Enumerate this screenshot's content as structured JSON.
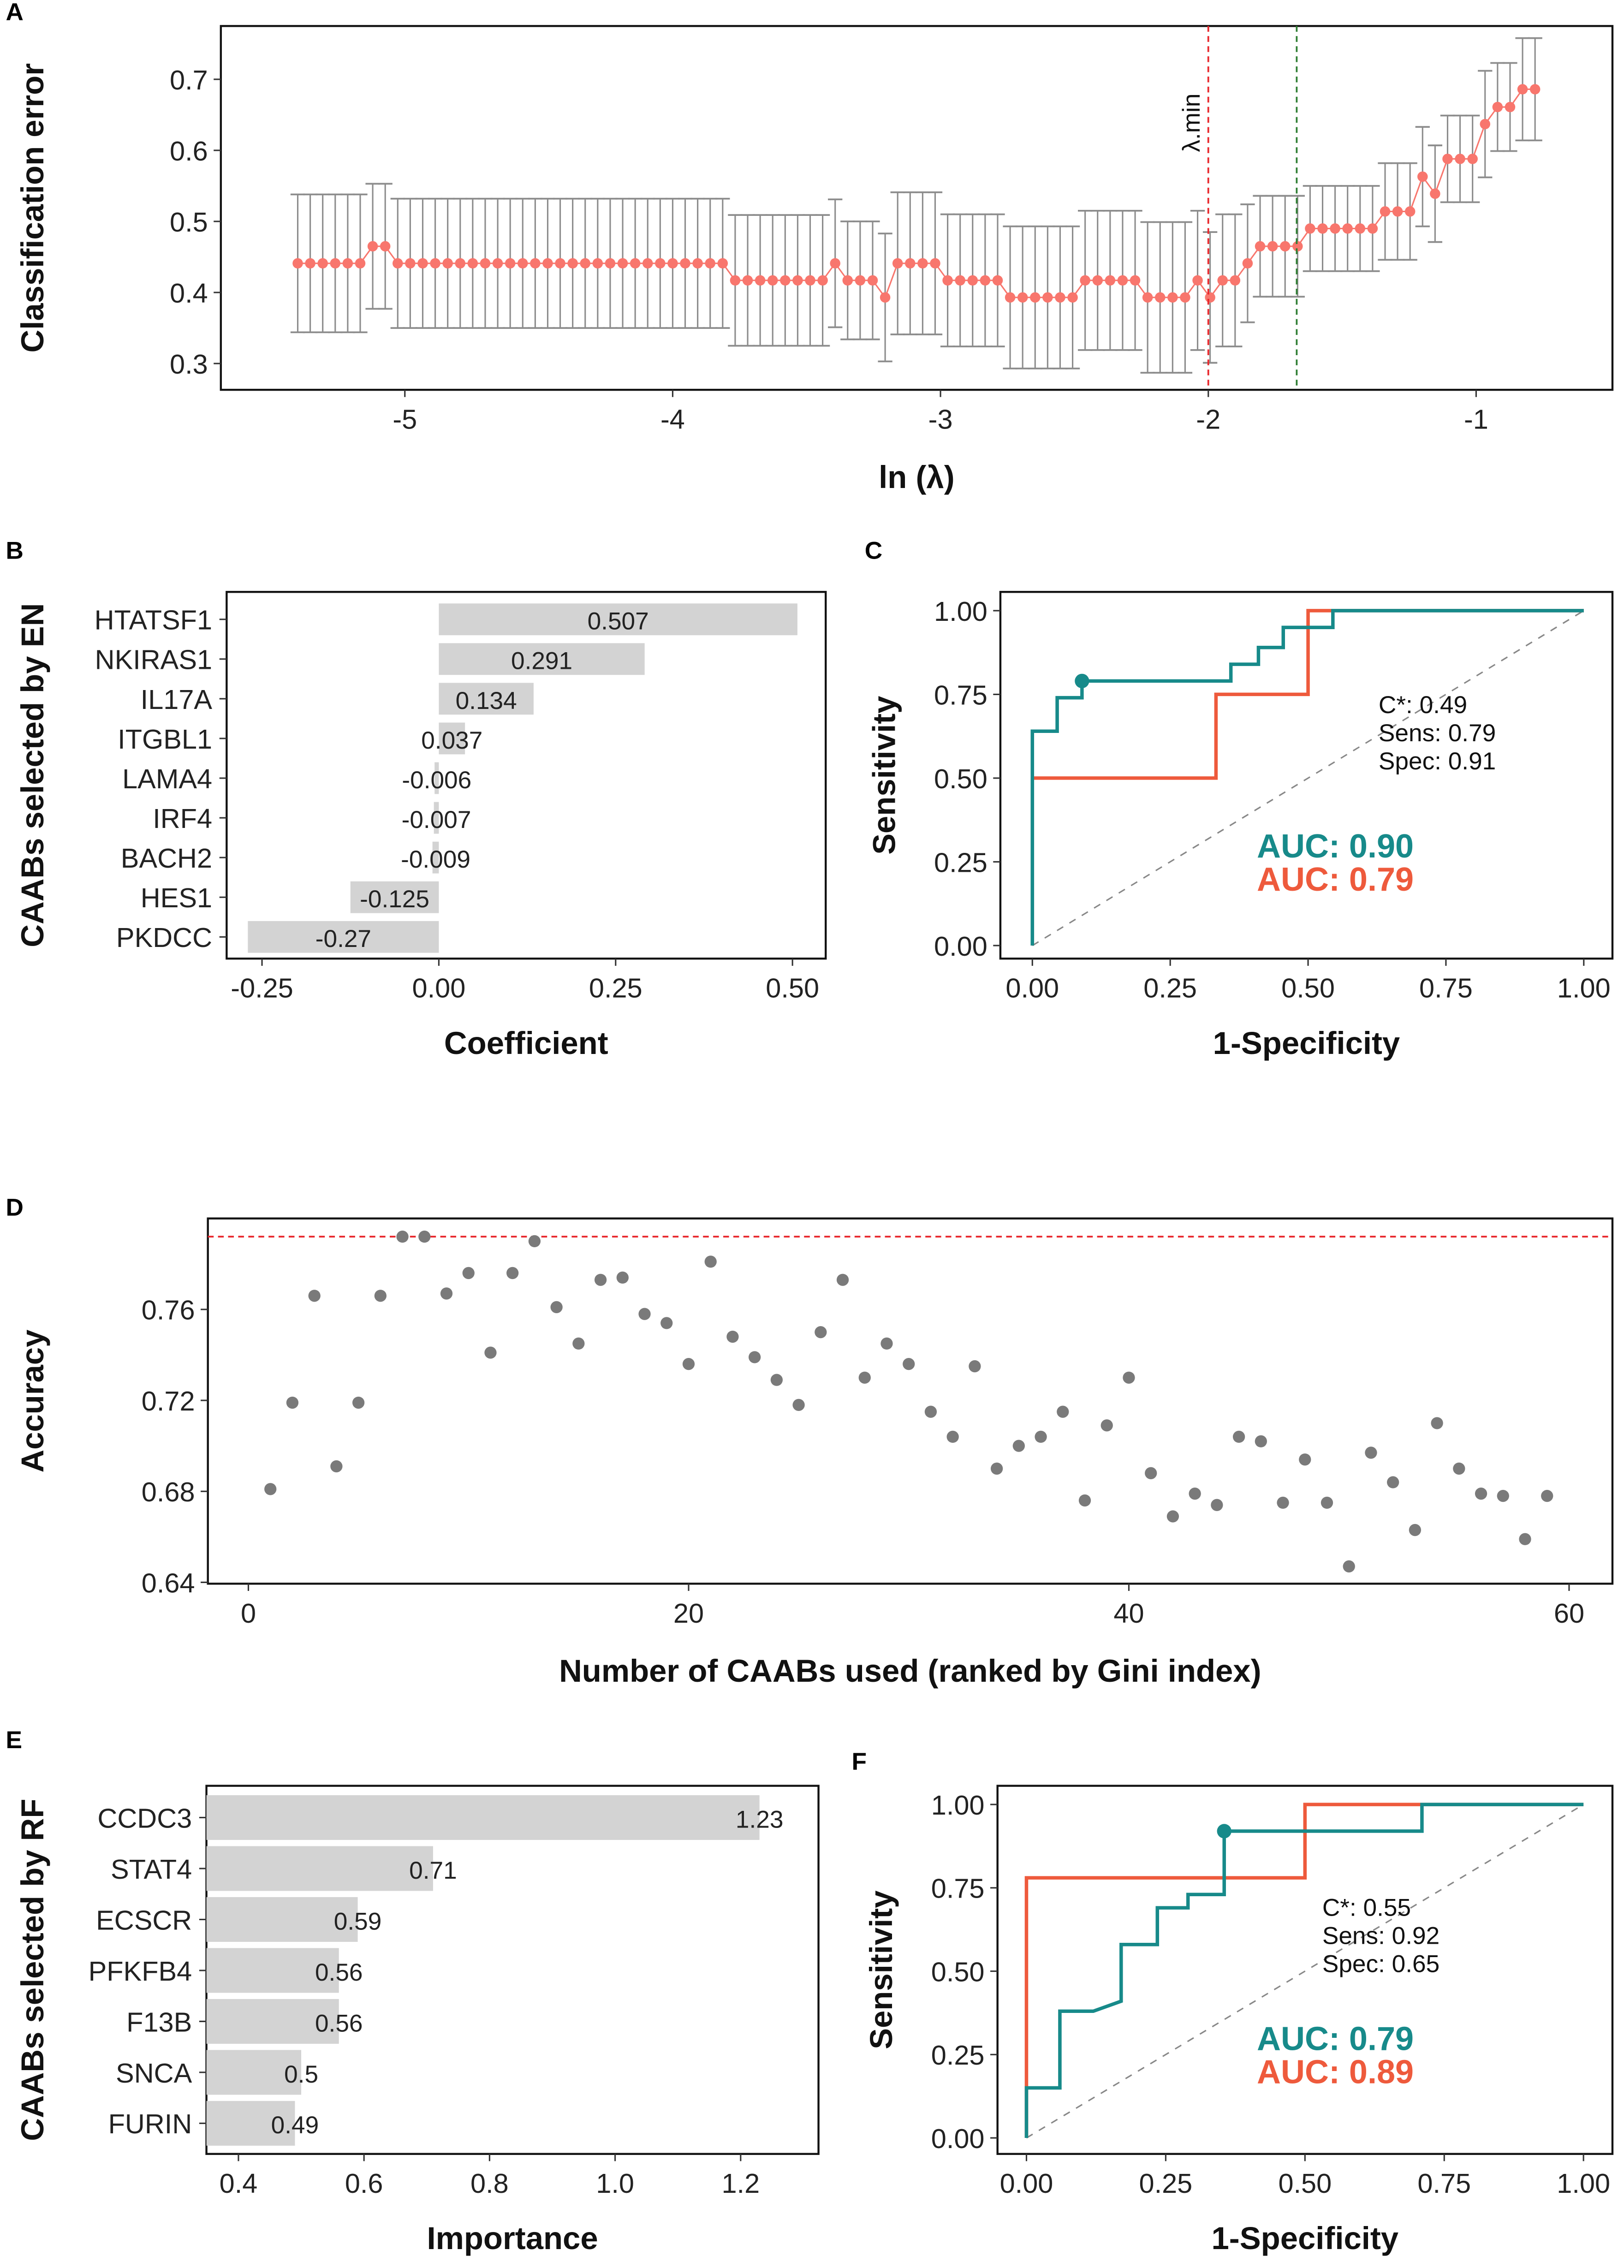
{
  "colors": {
    "teal": "#178a8a",
    "orange": "#ee5a3c",
    "salmon": "#f8766d",
    "bar": "#d3d3d3",
    "point": "#7a7a7a",
    "errbar": "#8c8c8c",
    "red_line": "#e8262b",
    "green_line": "#2e7d32"
  },
  "chart_data": [
    {
      "panel": "A",
      "type": "line",
      "xlabel": "ln (λ)",
      "ylabel": "Classification error",
      "xlim": [
        -5.687,
        -0.491
      ],
      "ylim": [
        0.263,
        0.775
      ],
      "xticks": [
        -5,
        -4,
        -3,
        -2,
        -1
      ],
      "xtick_labels": [
        "-5",
        "-4",
        "-3",
        "-2",
        "-1"
      ],
      "yticks": [
        0.3,
        0.4,
        0.5,
        0.6,
        0.7
      ],
      "ytick_labels": [
        "0.3",
        "0.4",
        "0.5",
        "0.6",
        "0.7"
      ],
      "ln_lambda_range": [
        -5.4,
        -0.78
      ],
      "runs": [
        {
          "n": 6,
          "err": 0.441,
          "hw": 0.097
        },
        {
          "n": 2,
          "err": 0.465,
          "hw": 0.088
        },
        {
          "n": 27,
          "err": 0.441,
          "hw": 0.091
        },
        {
          "n": 8,
          "err": 0.417,
          "hw": 0.092
        },
        {
          "n": 1,
          "err": 0.441,
          "hw": 0.09
        },
        {
          "n": 3,
          "err": 0.417,
          "hw": 0.083
        },
        {
          "n": 1,
          "err": 0.393,
          "hw": 0.09
        },
        {
          "n": 4,
          "err": 0.441,
          "hw": 0.1
        },
        {
          "n": 5,
          "err": 0.417,
          "hw": 0.093
        },
        {
          "n": 6,
          "err": 0.393,
          "hw": 0.1
        },
        {
          "n": 5,
          "err": 0.417,
          "hw": 0.098
        },
        {
          "n": 4,
          "err": 0.393,
          "hw": 0.106
        },
        {
          "n": 1,
          "err": 0.417,
          "hw": 0.098
        },
        {
          "n": 1,
          "err": 0.393,
          "hw": 0.092
        },
        {
          "n": 2,
          "err": 0.417,
          "hw": 0.093
        },
        {
          "n": 1,
          "err": 0.441,
          "hw": 0.083
        },
        {
          "n": 4,
          "err": 0.465,
          "hw": 0.071
        },
        {
          "n": 6,
          "err": 0.49,
          "hw": 0.06
        },
        {
          "n": 3,
          "err": 0.514,
          "hw": 0.068
        },
        {
          "n": 1,
          "err": 0.563,
          "hw": 0.07
        },
        {
          "n": 1,
          "err": 0.539,
          "hw": 0.068
        },
        {
          "n": 3,
          "err": 0.588,
          "hw": 0.061
        },
        {
          "n": 1,
          "err": 0.637,
          "hw": 0.075
        },
        {
          "n": 2,
          "err": 0.661,
          "hw": 0.062
        },
        {
          "n": 2,
          "err": 0.686,
          "hw": 0.072
        }
      ],
      "lambda_min": -2.0,
      "lambda_1se": -1.67,
      "lambda_min_label": "λ.min"
    },
    {
      "panel": "B",
      "type": "bar",
      "orientation": "horizontal",
      "xlabel": "Coefficient",
      "ylabel": "CAABs selected by EN",
      "xlim": [
        -0.3,
        0.547
      ],
      "xticks": [
        -0.25,
        0,
        0.25,
        0.5
      ],
      "xtick_labels": [
        "-0.25",
        "0.00",
        "0.25",
        "0.50"
      ],
      "categories": [
        "HTATSF1",
        "NKIRAS1",
        "IL17A",
        "ITGBL1",
        "LAMA4",
        "IRF4",
        "BACH2",
        "HES1",
        "PKDCC"
      ],
      "values": [
        0.507,
        0.291,
        0.134,
        0.037,
        -0.006,
        -0.007,
        -0.009,
        -0.125,
        -0.27
      ],
      "value_labels": [
        "0.507",
        "0.291",
        "0.134",
        "0.037",
        "-0.006",
        "-0.007",
        "-0.009",
        "-0.125",
        "-0.27"
      ]
    },
    {
      "panel": "C",
      "type": "line",
      "subtype": "roc",
      "xlabel": "1-Specificity",
      "ylabel": "Sensitivity",
      "xlim": [
        -0.058,
        1.052
      ],
      "ylim": [
        -0.039,
        1.056
      ],
      "ticks": [
        0,
        0.25,
        0.5,
        0.75,
        1
      ],
      "tick_labels": [
        "0.00",
        "0.25",
        "0.50",
        "0.75",
        "1.00"
      ],
      "series": [
        {
          "name": "teal",
          "auc_label": "AUC: 0.90",
          "points": [
            [
              0,
              0
            ],
            [
              0,
              0.64
            ],
            [
              0.045,
              0.64
            ],
            [
              0.045,
              0.74
            ],
            [
              0.09,
              0.74
            ],
            [
              0.09,
              0.79
            ],
            [
              0.36,
              0.79
            ],
            [
              0.36,
              0.84
            ],
            [
              0.41,
              0.84
            ],
            [
              0.41,
              0.89
            ],
            [
              0.455,
              0.89
            ],
            [
              0.455,
              0.95
            ],
            [
              0.545,
              0.95
            ],
            [
              0.545,
              1
            ],
            [
              1,
              1
            ]
          ]
        },
        {
          "name": "orange",
          "auc_label": "AUC: 0.79",
          "points": [
            [
              0,
              0
            ],
            [
              0,
              0.5
            ],
            [
              0.333,
              0.5
            ],
            [
              0.333,
              0.75
            ],
            [
              0.5,
              0.75
            ],
            [
              0.5,
              1
            ],
            [
              1,
              1
            ]
          ]
        }
      ],
      "cutoff_point": [
        0.09,
        0.79
      ],
      "annotations": [
        "C*: 0.49",
        "Sens: 0.79",
        "Spec: 0.91"
      ]
    },
    {
      "panel": "D",
      "type": "scatter",
      "xlabel": "Number of CAABs used (ranked by Gini index)",
      "ylabel": "Accuracy",
      "xlim": [
        -1.84,
        61.97
      ],
      "ylim": [
        0.6394,
        0.8
      ],
      "xticks": [
        0,
        20,
        40,
        60
      ],
      "xtick_labels": [
        "0",
        "20",
        "40",
        "60"
      ],
      "yticks": [
        0.64,
        0.68,
        0.72,
        0.76
      ],
      "ytick_labels": [
        "0.64",
        "0.68",
        "0.72",
        "0.76"
      ],
      "reference_line": 0.792,
      "y": [
        0.681,
        0.719,
        0.766,
        0.691,
        0.719,
        0.766,
        0.792,
        0.792,
        0.767,
        0.776,
        0.741,
        0.776,
        0.79,
        0.761,
        0.745,
        0.773,
        0.774,
        0.758,
        0.754,
        0.736,
        0.781,
        0.748,
        0.739,
        0.729,
        0.718,
        0.75,
        0.773,
        0.73,
        0.745,
        0.736,
        0.715,
        0.704,
        0.735,
        0.69,
        0.7,
        0.704,
        0.715,
        0.676,
        0.709,
        0.73,
        0.688,
        0.669,
        0.679,
        0.674,
        0.704,
        0.702,
        0.675,
        0.694,
        0.675,
        0.647,
        0.697,
        0.684,
        0.663,
        0.71,
        0.69,
        0.679,
        0.678,
        0.659,
        0.678
      ]
    },
    {
      "panel": "E",
      "type": "bar",
      "orientation": "horizontal",
      "xlabel": "Importance",
      "ylabel": "CAABs selected by RF",
      "xlim": [
        0.349,
        1.324
      ],
      "xticks": [
        0.4,
        0.6,
        0.8,
        1.0,
        1.2
      ],
      "xtick_labels": [
        "0.4",
        "0.6",
        "0.8",
        "1.0",
        "1.2"
      ],
      "categories": [
        "CCDC3",
        "STAT4",
        "ECSCR",
        "PFKFB4",
        "F13B",
        "SNCA",
        "FURIN"
      ],
      "values": [
        1.23,
        0.71,
        0.59,
        0.56,
        0.56,
        0.5,
        0.49
      ],
      "value_labels": [
        "1.23",
        "0.71",
        "0.59",
        "0.56",
        "0.56",
        "0.5",
        "0.49"
      ]
    },
    {
      "panel": "F",
      "type": "line",
      "subtype": "roc",
      "xlabel": "1-Specificity",
      "ylabel": "Sensitivity",
      "xlim": [
        -0.052,
        1.052
      ],
      "ylim": [
        -0.048,
        1.056
      ],
      "ticks": [
        0,
        0.25,
        0.5,
        0.75,
        1
      ],
      "tick_labels": [
        "0.00",
        "0.25",
        "0.50",
        "0.75",
        "1.00"
      ],
      "series": [
        {
          "name": "teal",
          "auc_label": "AUC: 0.79",
          "points": [
            [
              0,
              0
            ],
            [
              0,
              0.15
            ],
            [
              0.06,
              0.15
            ],
            [
              0.06,
              0.38
            ],
            [
              0.12,
              0.38
            ],
            [
              0.17,
              0.41
            ],
            [
              0.17,
              0.58
            ],
            [
              0.235,
              0.58
            ],
            [
              0.235,
              0.69
            ],
            [
              0.29,
              0.69
            ],
            [
              0.29,
              0.73
            ],
            [
              0.355,
              0.73
            ],
            [
              0.355,
              0.92
            ],
            [
              0.71,
              0.92
            ],
            [
              0.71,
              1
            ],
            [
              1,
              1
            ]
          ]
        },
        {
          "name": "orange",
          "auc_label": "AUC: 0.89",
          "points": [
            [
              0,
              0
            ],
            [
              0,
              0.78
            ],
            [
              0.5,
              0.78
            ],
            [
              0.5,
              1
            ],
            [
              1,
              1
            ]
          ]
        }
      ],
      "cutoff_point": [
        0.355,
        0.92
      ],
      "annotations": [
        "C*: 0.55",
        "Sens: 0.92",
        "Spec: 0.65"
      ]
    }
  ]
}
